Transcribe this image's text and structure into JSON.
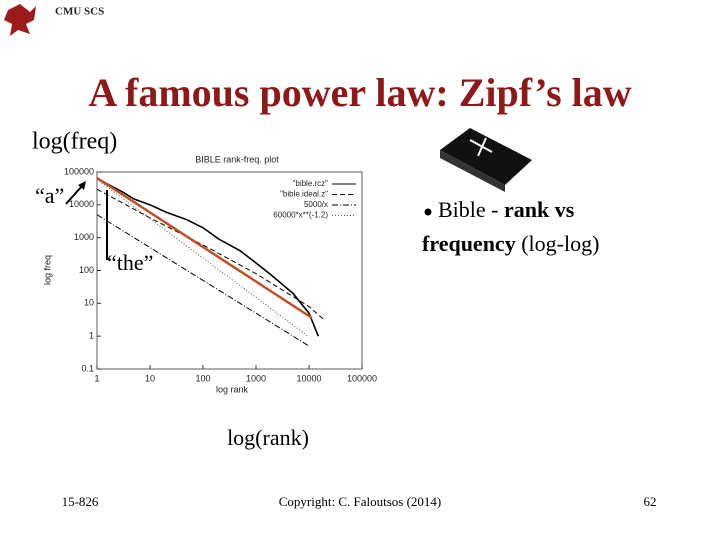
{
  "header": {
    "logo_text": "CMU SCS",
    "title": "A famous power law: Zipf’s law"
  },
  "annotations": {
    "y_note": "log(freq)",
    "x_note": "log(rank)",
    "a_note": "“a”",
    "the_note": "“the”"
  },
  "bullet": {
    "line1": [
      "Bible - ",
      "rank vs"
    ],
    "line2": [
      "frequency",
      " (log-log)"
    ]
  },
  "footer": {
    "course": "15-826",
    "copyright": "Copyright: C. Faloutsos (2014)",
    "page": "62"
  },
  "chart_data": {
    "type": "line",
    "title": "BIBLE rank-freq. plot",
    "x_label": "log rank",
    "y_label": "log freq",
    "xlog": true,
    "ylog": true,
    "xlim": [
      1,
      100000
    ],
    "ylim": [
      0.1,
      100000
    ],
    "xticks": [
      1,
      10,
      100,
      1000,
      10000,
      100000
    ],
    "yticks": [
      0.1,
      1,
      10,
      100,
      1000,
      10000,
      100000
    ],
    "series": [
      {
        "name": "\"bible.rcz\"",
        "color": "#000000",
        "dash": "none",
        "x": [
          1,
          2,
          3,
          5,
          10,
          20,
          50,
          100,
          200,
          500,
          1000,
          2000,
          5000,
          10000,
          15000
        ],
        "values": [
          64000,
          35000,
          25000,
          15000,
          10000,
          6000,
          3500,
          2000,
          900,
          400,
          170,
          70,
          20,
          5,
          1
        ]
      },
      {
        "name": "\"bible.ideal.z\"",
        "color": "#000000",
        "dash": "5 3",
        "x": [
          1,
          10,
          100,
          1000,
          10000,
          20000
        ],
        "values": [
          30000,
          4000,
          600,
          80,
          8,
          3
        ]
      },
      {
        "name": "5000/x",
        "color": "#000000",
        "dash": "6 2 1 2",
        "x": [
          1,
          10000
        ],
        "values": [
          5000,
          0.5
        ]
      },
      {
        "name": "60000*x**(-1.2)",
        "color": "#555555",
        "dash": "1 2",
        "x": [
          1,
          10000
        ],
        "values": [
          60000,
          0.95
        ]
      }
    ]
  }
}
